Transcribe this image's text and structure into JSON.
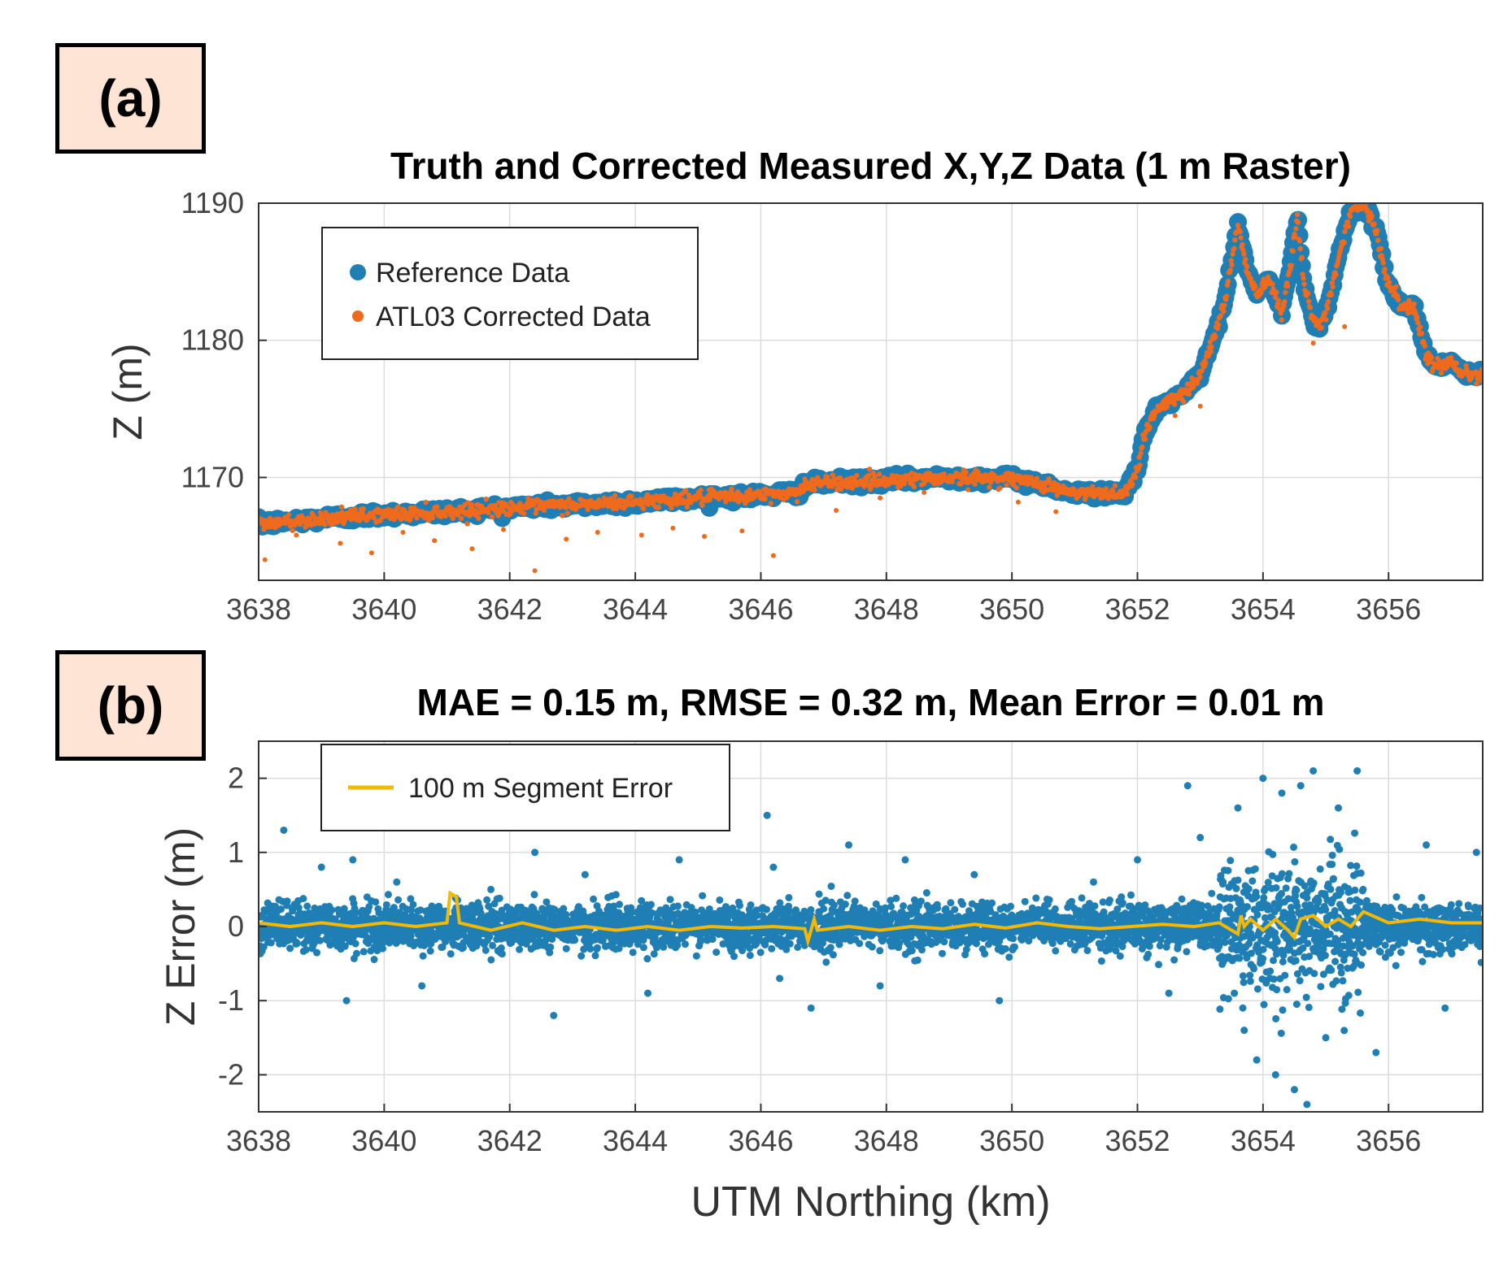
{
  "panels": [
    {
      "label": "(a)"
    },
    {
      "label": "(b)"
    }
  ],
  "chart_data": [
    {
      "type": "scatter",
      "title": "Truth and Corrected Measured X,Y,Z Data (1 m Raster)",
      "xlabel": "",
      "ylabel": "Z (m)",
      "xlim": [
        3638,
        3657.5
      ],
      "ylim": [
        1162.5,
        1190
      ],
      "xticks": [
        3638,
        3640,
        3642,
        3644,
        3646,
        3648,
        3650,
        3652,
        3654,
        3656
      ],
      "yticks": [
        1170,
        1180,
        1190
      ],
      "grid": true,
      "legend_position": "top-left",
      "series": [
        {
          "name": "Reference Data",
          "color": "#1f7fb5",
          "profile": {
            "x": [
              3638.0,
              3639.0,
              3640.0,
              3641.0,
              3642.0,
              3643.0,
              3644.0,
              3645.0,
              3646.0,
              3646.6,
              3646.7,
              3647.0,
              3648.0,
              3649.0,
              3650.0,
              3650.5,
              3651.0,
              3651.8,
              3652.0,
              3652.1,
              3652.3,
              3652.5,
              3652.7,
              3653.0,
              3653.2,
              3653.4,
              3653.6,
              3653.75,
              3653.9,
              3654.1,
              3654.3,
              3654.45,
              3654.55,
              3654.65,
              3654.8,
              3654.9,
              3655.0,
              3655.2,
              3655.4,
              3655.6,
              3655.8,
              3656.0,
              3656.2,
              3656.4,
              3656.6,
              3656.8,
              3657.0,
              3657.2,
              3657.5
            ],
            "y": [
              1166.6,
              1167.0,
              1167.3,
              1167.5,
              1167.8,
              1168.0,
              1168.2,
              1168.5,
              1168.7,
              1168.9,
              1169.5,
              1169.6,
              1169.8,
              1170.0,
              1169.9,
              1169.5,
              1168.8,
              1168.9,
              1170.5,
              1173.0,
              1175.0,
              1175.5,
              1176.0,
              1177.5,
              1180.0,
              1183.0,
              1188.5,
              1185.0,
              1183.5,
              1184.5,
              1182.0,
              1186.0,
              1189.0,
              1184.0,
              1181.5,
              1181.0,
              1182.0,
              1186.0,
              1189.5,
              1190.0,
              1188.0,
              1184.0,
              1182.5,
              1182.5,
              1179.0,
              1178.0,
              1178.5,
              1177.5,
              1177.5
            ]
          }
        },
        {
          "name": "ATL03 Corrected Data",
          "color": "#f06a1d",
          "outliers": {
            "x": [
              3638.1,
              3638.6,
              3639.3,
              3639.8,
              3640.3,
              3640.8,
              3641.4,
              3641.9,
              3642.4,
              3642.9,
              3643.4,
              3644.1,
              3644.6,
              3645.1,
              3645.7,
              3646.2,
              3646.7,
              3647.2,
              3647.9,
              3648.6,
              3649.3,
              3650.1,
              3650.7,
              3652.6,
              3653.0,
              3654.8,
              3655.3
            ],
            "y": [
              1164.0,
              1165.8,
              1165.2,
              1164.5,
              1166.0,
              1165.4,
              1164.8,
              1166.2,
              1163.2,
              1165.5,
              1166.0,
              1165.8,
              1166.3,
              1165.7,
              1166.1,
              1164.3,
              1169.9,
              1167.6,
              1168.5,
              1168.9,
              1169.1,
              1168.2,
              1167.5,
              1174.5,
              1175.2,
              1179.8,
              1181.0
            ]
          }
        }
      ]
    },
    {
      "type": "scatter",
      "title": "MAE = 0.15 m, RMSE = 0.32 m, Mean Error = 0.01 m",
      "xlabel": "UTM Northing (km)",
      "ylabel": "Z Error (m)",
      "xlim": [
        3638,
        3657.5
      ],
      "ylim": [
        -2.5,
        2.5
      ],
      "xticks": [
        3638,
        3640,
        3642,
        3644,
        3646,
        3648,
        3650,
        3652,
        3654,
        3656
      ],
      "yticks": [
        -2,
        -1,
        0,
        1,
        2
      ],
      "grid": true,
      "legend_position": "top-left",
      "series": [
        {
          "name": "",
          "color": "#1f7fb5",
          "outliers": {
            "x": [
              3638.4,
              3639.0,
              3639.5,
              3640.2,
              3641.7,
              3642.4,
              3643.2,
              3644.7,
              3646.1,
              3646.2,
              3647.4,
              3648.3,
              3649.4,
              3651.3,
              3652.0,
              3652.8,
              3653.0,
              3653.6,
              3654.0,
              3654.3,
              3654.6,
              3654.8,
              3655.2,
              3655.5,
              3656.6,
              3657.4,
              3639.4,
              3640.6,
              3642.7,
              3644.2,
              3646.3,
              3646.8,
              3647.9,
              3649.8,
              3652.5,
              3653.7,
              3653.9,
              3654.2,
              3654.5,
              3654.7,
              3655.0,
              3655.8,
              3656.9
            ],
            "y": [
              1.3,
              0.8,
              0.9,
              0.6,
              0.5,
              1.0,
              0.7,
              0.9,
              1.5,
              0.8,
              1.1,
              0.9,
              0.7,
              0.6,
              0.9,
              1.9,
              1.2,
              1.6,
              2.0,
              1.8,
              1.9,
              2.1,
              1.6,
              2.1,
              1.1,
              1.0,
              -1.0,
              -0.8,
              -1.2,
              -0.9,
              -0.7,
              -1.1,
              -0.8,
              -1.0,
              -0.9,
              -1.4,
              -1.8,
              -2.0,
              -2.2,
              -2.4,
              -1.5,
              -1.7,
              -1.1
            ]
          }
        },
        {
          "name": "100 m Segment Error",
          "color": "#f5b800",
          "profile": {
            "x": [
              3638.0,
              3638.5,
              3639.0,
              3639.5,
              3640.0,
              3640.5,
              3641.0,
              3641.05,
              3641.15,
              3641.2,
              3641.7,
              3642.2,
              3642.7,
              3643.2,
              3643.7,
              3644.2,
              3644.7,
              3645.2,
              3645.7,
              3646.2,
              3646.7,
              3646.75,
              3646.85,
              3646.9,
              3647.4,
              3647.9,
              3648.4,
              3648.9,
              3649.4,
              3649.9,
              3650.4,
              3650.9,
              3651.4,
              3651.9,
              3652.4,
              3652.9,
              3653.3,
              3653.6,
              3653.65,
              3653.7,
              3653.8,
              3654.0,
              3654.2,
              3654.4,
              3654.5,
              3654.6,
              3654.8,
              3655.0,
              3655.2,
              3655.4,
              3655.6,
              3656.0,
              3656.5,
              3657.0,
              3657.5
            ],
            "y": [
              0.05,
              0.0,
              0.05,
              0.0,
              0.05,
              0.0,
              0.05,
              0.45,
              0.4,
              0.05,
              -0.05,
              0.05,
              -0.05,
              0.0,
              -0.05,
              0.0,
              -0.05,
              0.0,
              -0.02,
              0.0,
              -0.03,
              -0.2,
              0.1,
              -0.05,
              0.0,
              -0.05,
              0.0,
              -0.03,
              0.03,
              -0.02,
              0.05,
              0.0,
              -0.03,
              0.0,
              0.03,
              0.0,
              0.05,
              -0.1,
              0.15,
              0.0,
              0.1,
              -0.05,
              0.1,
              -0.05,
              -0.15,
              0.1,
              0.15,
              0.0,
              0.1,
              0.0,
              0.2,
              0.05,
              0.1,
              0.05,
              0.05
            ]
          }
        }
      ]
    }
  ]
}
